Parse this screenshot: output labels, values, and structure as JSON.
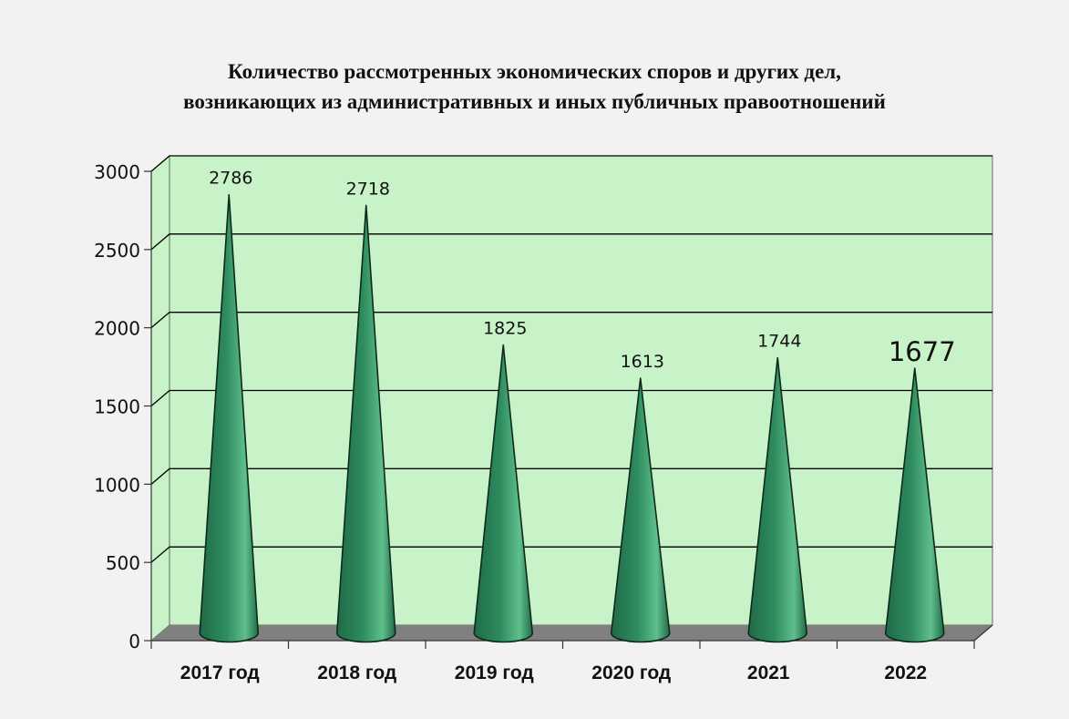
{
  "chart_data": {
    "type": "bar",
    "title_lines": [
      "Количество рассмотренных экономических споров и других дел,",
      "возникающих из административных и иных публичных правоотношений"
    ],
    "categories": [
      "2017 год",
      "2018 год",
      "2019 год",
      "2020 год",
      "2021",
      "2022"
    ],
    "values": [
      2786,
      2718,
      1825,
      1613,
      1744,
      1677
    ],
    "data_labels": [
      "2786",
      "2718",
      "1825",
      "1613",
      "1744",
      "1677"
    ],
    "ylim": [
      0,
      3000
    ],
    "yticks": [
      0,
      500,
      1000,
      1500,
      2000,
      2500,
      3000
    ],
    "ytick_labels": [
      "0",
      "500",
      "1000",
      "1500",
      "2000",
      "2500",
      "3000"
    ],
    "grid": true,
    "legend": "none",
    "colors": {
      "wall": "#c8f2c8",
      "floor": "#808080",
      "cone_dark": "#1f6b47",
      "cone_mid": "#2f8c5e",
      "cone_light": "#5fbf8c",
      "gridline": "#000000"
    }
  }
}
